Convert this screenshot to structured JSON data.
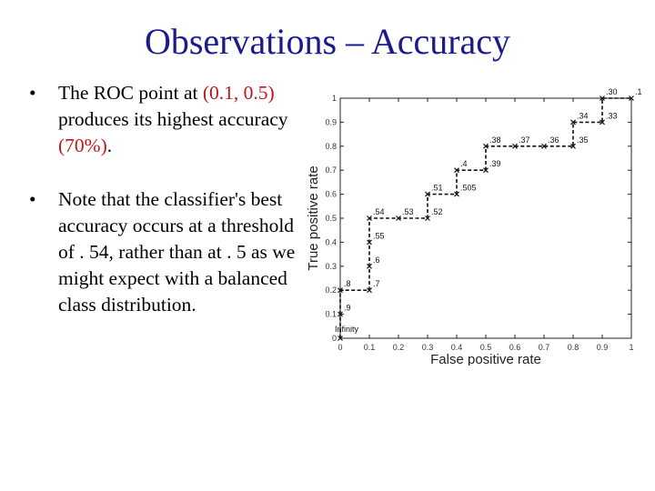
{
  "title": "Observations – Accuracy",
  "bullets": [
    {
      "marker": "•",
      "pre": "The ROC point at ",
      "highlight": "(0.1, 0.5)",
      "post": " produces its highest accuracy ",
      "highlight2": "(70%)",
      "end": "."
    },
    {
      "marker": "•",
      "text": "Note that the classifier's best accuracy occurs at a threshold of . 54, rather than at . 5 as we might expect with a balanced class distribution."
    }
  ],
  "colors": {
    "title": "#1a1a8c",
    "highlight": "#c0161a",
    "curve": "#111111"
  },
  "chart_data": {
    "type": "line",
    "xlabel": "False positive rate",
    "ylabel": "True positive rate",
    "xlim": [
      0,
      1
    ],
    "ylim": [
      0,
      1
    ],
    "xticks": [
      "0",
      "0.1",
      "0.2",
      "0.3",
      "0.4",
      "0.5",
      "0.6",
      "0.7",
      "0.8",
      "0.9",
      "1"
    ],
    "yticks": [
      "0",
      "0.1",
      "0.2",
      "0.3",
      "0.4",
      "0.5",
      "0.6",
      "0.7",
      "0.8",
      "0.9",
      "1"
    ],
    "style": "dashed step curve with x markers",
    "points": [
      {
        "x": 0,
        "y": 0,
        "label": "Infinity"
      },
      {
        "x": 0,
        "y": 0.1,
        "label": ".9"
      },
      {
        "x": 0,
        "y": 0.2,
        "label": ".8"
      },
      {
        "x": 0.1,
        "y": 0.2,
        "label": ".7"
      },
      {
        "x": 0.1,
        "y": 0.3,
        "label": ".6"
      },
      {
        "x": 0.1,
        "y": 0.4,
        "label": ".55"
      },
      {
        "x": 0.1,
        "y": 0.5,
        "label": ".54"
      },
      {
        "x": 0.2,
        "y": 0.5,
        "label": ".53"
      },
      {
        "x": 0.3,
        "y": 0.5,
        "label": ".52"
      },
      {
        "x": 0.3,
        "y": 0.6,
        "label": ".51"
      },
      {
        "x": 0.4,
        "y": 0.6,
        "label": ".505"
      },
      {
        "x": 0.4,
        "y": 0.7,
        "label": ".4"
      },
      {
        "x": 0.5,
        "y": 0.7,
        "label": ".39"
      },
      {
        "x": 0.5,
        "y": 0.8,
        "label": ".38"
      },
      {
        "x": 0.6,
        "y": 0.8,
        "label": ".37"
      },
      {
        "x": 0.7,
        "y": 0.8,
        "label": ".36"
      },
      {
        "x": 0.8,
        "y": 0.8,
        "label": ".35"
      },
      {
        "x": 0.8,
        "y": 0.9,
        "label": ".34"
      },
      {
        "x": 0.9,
        "y": 0.9,
        "label": ".33"
      },
      {
        "x": 0.9,
        "y": 1.0,
        "label": ".30"
      },
      {
        "x": 1.0,
        "y": 1.0,
        "label": ".1"
      }
    ]
  }
}
